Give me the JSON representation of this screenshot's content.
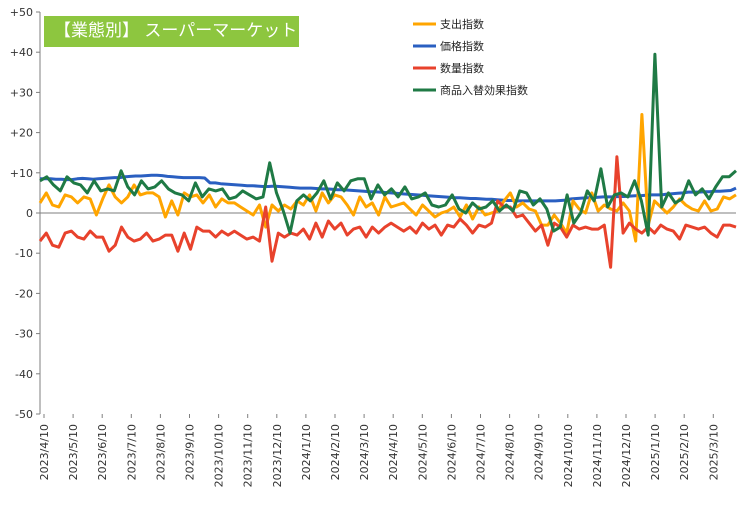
{
  "chart_data": {
    "type": "line",
    "title": "【業態別】 スーパーマーケット",
    "ylim": [
      -50,
      50
    ],
    "y_ticks": [
      "+50",
      "+40",
      "+30",
      "+20",
      "+10",
      "0",
      "-10",
      "-20",
      "-30",
      "-40",
      "-50"
    ],
    "x_ticks": [
      "2023/4/10",
      "2023/5/10",
      "2023/6/10",
      "2023/7/10",
      "2023/8/10",
      "2023/9/10",
      "2023/10/10",
      "2023/11/10",
      "2023/12/10",
      "2024/1/10",
      "2024/2/10",
      "2024/3/10",
      "2024/4/10",
      "2024/5/10",
      "2024/6/10",
      "2024/7/10",
      "2024/8/10",
      "2024/9/10",
      "2024/10/10",
      "2024/11/10",
      "2024/12/10",
      "2025/1/10",
      "2025/2/10",
      "2025/3/10"
    ],
    "legend_position": "top-right",
    "grid": false,
    "series": [
      {
        "name": "支出指数",
        "color": "#ffa500",
        "values": [
          2.5,
          5,
          2,
          1.5,
          4.5,
          4,
          2.5,
          4,
          3.5,
          -0.5,
          3.5,
          7,
          4,
          2.5,
          4,
          7,
          4.5,
          5,
          5,
          4,
          -1,
          3,
          -0.5,
          5,
          4,
          4.5,
          2.5,
          4.5,
          1.5,
          3.5,
          2.5,
          2.5,
          1.5,
          0.5,
          -0.5,
          2,
          -3.5,
          2,
          0.5,
          2,
          1,
          3,
          2,
          4.5,
          0.5,
          5,
          2.5,
          4.5,
          4,
          2,
          -0.5,
          4,
          1.5,
          2.5,
          -0.5,
          4,
          1.5,
          2,
          2.5,
          1,
          -0.5,
          2,
          0.5,
          -1,
          0,
          0.5,
          1.5,
          -1,
          2,
          -1.5,
          1.5,
          -0.5,
          0,
          0.5,
          3,
          5,
          1.5,
          2.5,
          1,
          0.5,
          -3,
          -3,
          -0.5,
          -2.5,
          -5,
          3,
          1,
          0,
          5,
          0.5,
          2,
          1,
          0.5,
          2.5,
          0.5,
          -7,
          24.5,
          -3,
          3,
          1.5,
          0,
          1.5,
          3.5,
          2,
          1,
          0.5,
          3,
          0.5,
          1,
          4,
          3.5,
          4.5
        ]
      },
      {
        "name": "価格指数",
        "color": "#2a5fc1",
        "values": [
          8.5,
          8.5,
          8.5,
          8.4,
          8.4,
          8.3,
          8.3,
          8.5,
          8.6,
          8.5,
          8.4,
          8.5,
          8.6,
          8.7,
          8.8,
          8.8,
          9,
          9.1,
          9.2,
          9.2,
          9.3,
          9.4,
          9.4,
          9.3,
          9.1,
          9,
          8.9,
          8.8,
          8.8,
          8.8,
          8.8,
          8.7,
          7.5,
          7.5,
          7.3,
          7.2,
          7.1,
          7,
          6.9,
          6.8,
          6.8,
          6.7,
          6.6,
          6.6,
          6.7,
          6.6,
          6.5,
          6.4,
          6.3,
          6.2,
          6.2,
          6.2,
          6.1,
          6,
          6,
          5.9,
          5.8,
          5.8,
          5.7,
          5.6,
          5.5,
          5.4,
          5.3,
          5.3,
          5.2,
          5.1,
          5,
          4.9,
          4.8,
          4.7,
          4.6,
          4.5,
          4.4,
          4.3,
          4.2,
          4.1,
          4,
          3.9,
          3.8,
          3.8,
          3.7,
          3.6,
          3.6,
          3.5,
          3.4,
          3.4,
          3.3,
          3.2,
          3.1,
          3.1,
          3,
          3,
          3,
          3,
          3,
          3,
          3,
          3,
          3.1,
          3.2,
          3.5,
          3.6,
          3.7,
          3.8,
          3.8,
          3.9,
          4,
          4,
          4,
          4.1,
          4.1,
          4.2,
          4.3,
          4.3,
          4.4,
          4.5,
          4.5,
          4.5,
          4.7,
          4.8,
          4.9,
          5,
          5.2,
          5.2,
          5.2,
          5.3,
          5.3,
          5.4,
          5.4,
          5.5,
          5.6,
          6.2
        ]
      },
      {
        "name": "数量指数",
        "color": "#e8422c",
        "values": [
          -7,
          -5,
          -8,
          -8.5,
          -5,
          -4.5,
          -6,
          -6.5,
          -4.5,
          -6,
          -6,
          -9.5,
          -8,
          -3.5,
          -6,
          -7,
          -6.5,
          -5,
          -7,
          -6.5,
          -5.5,
          -5.5,
          -9.5,
          -5,
          -9,
          -3.5,
          -4.5,
          -4.5,
          -6,
          -4.5,
          -5.5,
          -4.5,
          -5.5,
          -6.5,
          -6,
          -7,
          1.5,
          -12,
          -5,
          -6,
          -5,
          -5.5,
          -4,
          -6.5,
          -2.5,
          -6,
          -2,
          -4,
          -2.5,
          -5.5,
          -4,
          -3.5,
          -6,
          -3.5,
          -5,
          -3.5,
          -2.5,
          -3.5,
          -4.5,
          -3.5,
          -5,
          -2.5,
          -4,
          -3,
          -5.5,
          -3,
          -3.5,
          -1.5,
          -3,
          -5,
          -3,
          -3.5,
          -2.5,
          3,
          1.5,
          1.5,
          -1,
          -0.5,
          -2.5,
          -4.5,
          -3,
          -8,
          -2.5,
          -3.5,
          -6,
          -3,
          -4,
          -3.5,
          -4,
          -4,
          -3,
          -13.5,
          14,
          -5,
          -2.5,
          -4,
          -5,
          -3.5,
          -5,
          -3,
          -4,
          -4.5,
          -6.5,
          -3,
          -3.5,
          -4,
          -3.5,
          -5,
          -6,
          -3,
          -3,
          -3.5
        ]
      },
      {
        "name": "商品入替効果指数",
        "color": "#1f7a45",
        "values": [
          8,
          9,
          7,
          5.5,
          9,
          7.5,
          7,
          5,
          8,
          5.5,
          6,
          5.5,
          10.5,
          6.5,
          4.5,
          8,
          6,
          6.5,
          8,
          6,
          5,
          4.5,
          3,
          7.5,
          4,
          6,
          5.5,
          6,
          3.5,
          4,
          5.5,
          4.5,
          3.5,
          4,
          12.5,
          5,
          0.5,
          -5,
          3,
          4.5,
          3,
          5,
          8,
          3.5,
          7.5,
          5.5,
          8,
          8.5,
          8.5,
          3.5,
          7,
          4.5,
          6,
          4,
          6.5,
          3.5,
          4,
          5,
          2,
          1.5,
          2,
          4.5,
          1,
          0,
          2.5,
          1,
          1.5,
          3,
          0.5,
          2,
          0.5,
          5.5,
          5,
          2,
          3.5,
          1,
          -4.5,
          -3.5,
          4.5,
          -2.5,
          0,
          5.5,
          3,
          11,
          1.5,
          4.5,
          5,
          4,
          8,
          3,
          -5.5,
          39.5,
          1.5,
          5,
          2.5,
          3.5,
          8,
          4.5,
          6,
          3.5,
          6.5,
          9,
          9,
          10.5
        ]
      }
    ]
  }
}
